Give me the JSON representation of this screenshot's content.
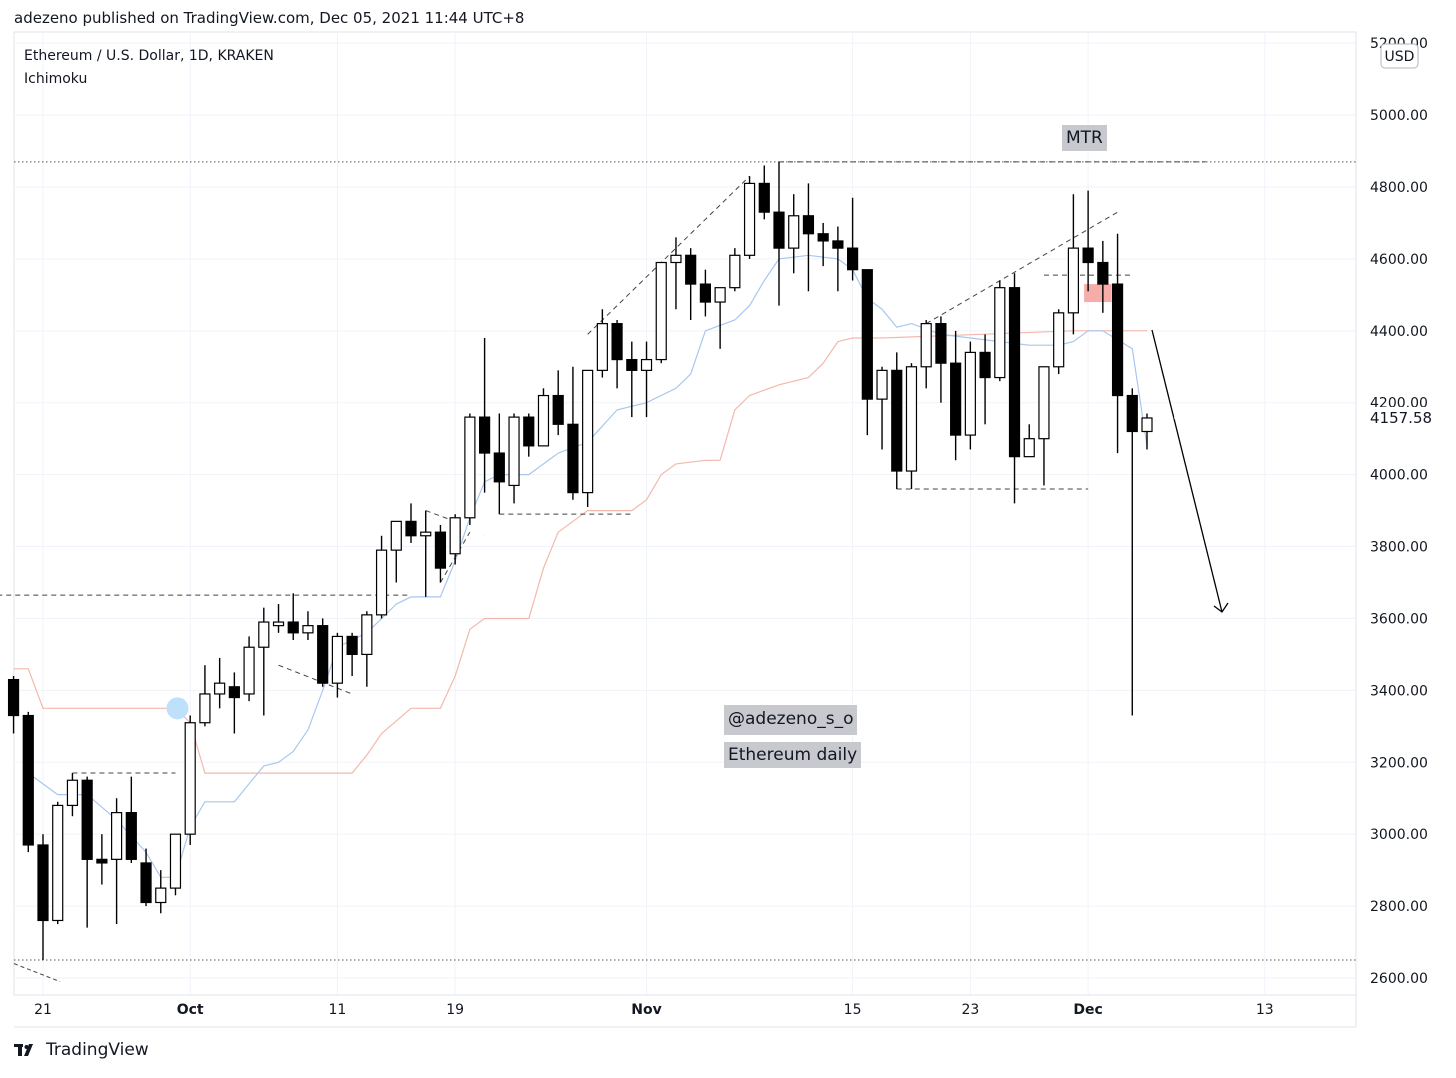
{
  "header": {
    "publish_line": "adezeno published on TradingView.com, Dec 05, 2021 11:44 UTC+8"
  },
  "legend": {
    "symbol": "Ethereum / U.S. Dollar, 1D, KRAKEN",
    "indicator": "Ichimoku"
  },
  "annotations": {
    "mtr_label": "MTR",
    "author_tag": "@adezeno_s_o",
    "caption": "Ethereum daily"
  },
  "footer": {
    "brand": "TradingView"
  },
  "colors": {
    "bull_body": "#ffffff",
    "bear_body": "#000000",
    "wick": "#000000",
    "grid": "#f0f3fa",
    "tenkan": "#aac6ee",
    "kijun": "#f3b8ad",
    "highlight_fill": "#f5a3a0",
    "circle_marker": "#bfe0fb",
    "annotation_box": "#c7c9cf",
    "last_price_label": "#ffffff"
  },
  "chart_data": {
    "type": "candlestick",
    "currency": "USD",
    "y_ticks": [
      "2600.00",
      "2800.00",
      "3000.00",
      "3200.00",
      "3400.00",
      "3600.00",
      "3800.00",
      "4000.00",
      "4200.00",
      "4400.00",
      "4600.00",
      "4800.00",
      "5000.00",
      "5200.00"
    ],
    "ylim": [
      2570,
      5220
    ],
    "last_price": "4157.58",
    "x_ticks": [
      {
        "label": "21",
        "date": "2021-09-21"
      },
      {
        "label": "Oct",
        "date": "2021-10-01"
      },
      {
        "label": "11",
        "date": "2021-10-11"
      },
      {
        "label": "19",
        "date": "2021-10-19"
      },
      {
        "label": "Nov",
        "date": "2021-11-01"
      },
      {
        "label": "15",
        "date": "2021-11-15"
      },
      {
        "label": "23",
        "date": "2021-11-23"
      },
      {
        "label": "Dec",
        "date": "2021-12-01"
      },
      {
        "label": "13",
        "date": "2021-12-13"
      }
    ],
    "candles": [
      {
        "date": "2021-09-19",
        "o": 3430,
        "h": 3440,
        "l": 3280,
        "c": 3330
      },
      {
        "date": "2021-09-20",
        "o": 3330,
        "h": 3340,
        "l": 2950,
        "c": 2970
      },
      {
        "date": "2021-09-21",
        "o": 2970,
        "h": 3000,
        "l": 2650,
        "c": 2760
      },
      {
        "date": "2021-09-22",
        "o": 2760,
        "h": 3090,
        "l": 2750,
        "c": 3080
      },
      {
        "date": "2021-09-23",
        "o": 3080,
        "h": 3170,
        "l": 3050,
        "c": 3150
      },
      {
        "date": "2021-09-24",
        "o": 3150,
        "h": 3160,
        "l": 2740,
        "c": 2930
      },
      {
        "date": "2021-09-25",
        "o": 2930,
        "h": 3000,
        "l": 2860,
        "c": 2920
      },
      {
        "date": "2021-09-26",
        "o": 2930,
        "h": 3100,
        "l": 2750,
        "c": 3060
      },
      {
        "date": "2021-09-27",
        "o": 3060,
        "h": 3160,
        "l": 2920,
        "c": 2930
      },
      {
        "date": "2021-09-28",
        "o": 2920,
        "h": 2960,
        "l": 2800,
        "c": 2810
      },
      {
        "date": "2021-09-29",
        "o": 2810,
        "h": 2900,
        "l": 2780,
        "c": 2850
      },
      {
        "date": "2021-09-30",
        "o": 2850,
        "h": 3000,
        "l": 2830,
        "c": 3000
      },
      {
        "date": "2021-10-01",
        "o": 3000,
        "h": 3330,
        "l": 2970,
        "c": 3310
      },
      {
        "date": "2021-10-02",
        "o": 3310,
        "h": 3470,
        "l": 3300,
        "c": 3390
      },
      {
        "date": "2021-10-03",
        "o": 3390,
        "h": 3490,
        "l": 3350,
        "c": 3420
      },
      {
        "date": "2021-10-04",
        "o": 3410,
        "h": 3450,
        "l": 3280,
        "c": 3380
      },
      {
        "date": "2021-10-05",
        "o": 3390,
        "h": 3550,
        "l": 3370,
        "c": 3520
      },
      {
        "date": "2021-10-06",
        "o": 3520,
        "h": 3630,
        "l": 3330,
        "c": 3590
      },
      {
        "date": "2021-10-07",
        "o": 3580,
        "h": 3640,
        "l": 3560,
        "c": 3590
      },
      {
        "date": "2021-10-08",
        "o": 3590,
        "h": 3670,
        "l": 3540,
        "c": 3560
      },
      {
        "date": "2021-10-09",
        "o": 3560,
        "h": 3620,
        "l": 3540,
        "c": 3580
      },
      {
        "date": "2021-10-10",
        "o": 3580,
        "h": 3600,
        "l": 3410,
        "c": 3420
      },
      {
        "date": "2021-10-11",
        "o": 3420,
        "h": 3560,
        "l": 3380,
        "c": 3550
      },
      {
        "date": "2021-10-12",
        "o": 3550,
        "h": 3560,
        "l": 3440,
        "c": 3500
      },
      {
        "date": "2021-10-13",
        "o": 3500,
        "h": 3620,
        "l": 3410,
        "c": 3610
      },
      {
        "date": "2021-10-14",
        "o": 3610,
        "h": 3830,
        "l": 3600,
        "c": 3790
      },
      {
        "date": "2021-10-15",
        "o": 3790,
        "h": 3870,
        "l": 3700,
        "c": 3870
      },
      {
        "date": "2021-10-16",
        "o": 3870,
        "h": 3920,
        "l": 3810,
        "c": 3830
      },
      {
        "date": "2021-10-17",
        "o": 3830,
        "h": 3900,
        "l": 3660,
        "c": 3840
      },
      {
        "date": "2021-10-18",
        "o": 3840,
        "h": 3860,
        "l": 3700,
        "c": 3740
      },
      {
        "date": "2021-10-19",
        "o": 3780,
        "h": 3890,
        "l": 3750,
        "c": 3880
      },
      {
        "date": "2021-10-20",
        "o": 3880,
        "h": 4170,
        "l": 3860,
        "c": 4160
      },
      {
        "date": "2021-10-21",
        "o": 4160,
        "h": 4380,
        "l": 3950,
        "c": 4060
      },
      {
        "date": "2021-10-22",
        "o": 4060,
        "h": 4170,
        "l": 3890,
        "c": 3980
      },
      {
        "date": "2021-10-23",
        "o": 3970,
        "h": 4170,
        "l": 3920,
        "c": 4160
      },
      {
        "date": "2021-10-24",
        "o": 4160,
        "h": 4170,
        "l": 4050,
        "c": 4080
      },
      {
        "date": "2021-10-25",
        "o": 4080,
        "h": 4240,
        "l": 4080,
        "c": 4220
      },
      {
        "date": "2021-10-26",
        "o": 4220,
        "h": 4290,
        "l": 4110,
        "c": 4140
      },
      {
        "date": "2021-10-27",
        "o": 4140,
        "h": 4300,
        "l": 3930,
        "c": 3950
      },
      {
        "date": "2021-10-28",
        "o": 3950,
        "h": 4290,
        "l": 3910,
        "c": 4290
      },
      {
        "date": "2021-10-29",
        "o": 4290,
        "h": 4460,
        "l": 4270,
        "c": 4420
      },
      {
        "date": "2021-10-30",
        "o": 4420,
        "h": 4430,
        "l": 4240,
        "c": 4320
      },
      {
        "date": "2021-10-31",
        "o": 4320,
        "h": 4370,
        "l": 4160,
        "c": 4290
      },
      {
        "date": "2021-11-01",
        "o": 4290,
        "h": 4370,
        "l": 4160,
        "c": 4320
      },
      {
        "date": "2021-11-02",
        "o": 4320,
        "h": 4590,
        "l": 4310,
        "c": 4590
      },
      {
        "date": "2021-11-03",
        "o": 4590,
        "h": 4660,
        "l": 4460,
        "c": 4610
      },
      {
        "date": "2021-11-04",
        "o": 4610,
        "h": 4630,
        "l": 4430,
        "c": 4530
      },
      {
        "date": "2021-11-05",
        "o": 4530,
        "h": 4570,
        "l": 4440,
        "c": 4480
      },
      {
        "date": "2021-11-06",
        "o": 4480,
        "h": 4520,
        "l": 4350,
        "c": 4520
      },
      {
        "date": "2021-11-07",
        "o": 4520,
        "h": 4630,
        "l": 4510,
        "c": 4610
      },
      {
        "date": "2021-11-08",
        "o": 4610,
        "h": 4830,
        "l": 4600,
        "c": 4810
      },
      {
        "date": "2021-11-09",
        "o": 4810,
        "h": 4860,
        "l": 4710,
        "c": 4730
      },
      {
        "date": "2021-11-10",
        "o": 4730,
        "h": 4870,
        "l": 4470,
        "c": 4630
      },
      {
        "date": "2021-11-11",
        "o": 4630,
        "h": 4780,
        "l": 4560,
        "c": 4720
      },
      {
        "date": "2021-11-12",
        "o": 4720,
        "h": 4810,
        "l": 4510,
        "c": 4670
      },
      {
        "date": "2021-11-13",
        "o": 4670,
        "h": 4700,
        "l": 4580,
        "c": 4650
      },
      {
        "date": "2021-11-14",
        "o": 4650,
        "h": 4690,
        "l": 4510,
        "c": 4630
      },
      {
        "date": "2021-11-15",
        "o": 4630,
        "h": 4770,
        "l": 4540,
        "c": 4570
      },
      {
        "date": "2021-11-16",
        "o": 4570,
        "h": 4570,
        "l": 4110,
        "c": 4210
      },
      {
        "date": "2021-11-17",
        "o": 4210,
        "h": 4300,
        "l": 4070,
        "c": 4290
      },
      {
        "date": "2021-11-18",
        "o": 4290,
        "h": 4340,
        "l": 3960,
        "c": 4010
      },
      {
        "date": "2021-11-19",
        "o": 4010,
        "h": 4310,
        "l": 3960,
        "c": 4300
      },
      {
        "date": "2021-11-20",
        "o": 4300,
        "h": 4430,
        "l": 4240,
        "c": 4420
      },
      {
        "date": "2021-11-21",
        "o": 4420,
        "h": 4440,
        "l": 4200,
        "c": 4310
      },
      {
        "date": "2021-11-22",
        "o": 4310,
        "h": 4400,
        "l": 4040,
        "c": 4110
      },
      {
        "date": "2021-11-23",
        "o": 4110,
        "h": 4370,
        "l": 4070,
        "c": 4340
      },
      {
        "date": "2021-11-24",
        "o": 4340,
        "h": 4390,
        "l": 4140,
        "c": 4270
      },
      {
        "date": "2021-11-25",
        "o": 4270,
        "h": 4540,
        "l": 4260,
        "c": 4520
      },
      {
        "date": "2021-11-26",
        "o": 4520,
        "h": 4560,
        "l": 3920,
        "c": 4050
      },
      {
        "date": "2021-11-27",
        "o": 4050,
        "h": 4140,
        "l": 4050,
        "c": 4100
      },
      {
        "date": "2021-11-28",
        "o": 4100,
        "h": 4300,
        "l": 3970,
        "c": 4300
      },
      {
        "date": "2021-11-29",
        "o": 4300,
        "h": 4460,
        "l": 4280,
        "c": 4450
      },
      {
        "date": "2021-11-30",
        "o": 4450,
        "h": 4780,
        "l": 4390,
        "c": 4630
      },
      {
        "date": "2021-12-01",
        "o": 4630,
        "h": 4790,
        "l": 4510,
        "c": 4590
      },
      {
        "date": "2021-12-02",
        "o": 4590,
        "h": 4650,
        "l": 4450,
        "c": 4530
      },
      {
        "date": "2021-12-03",
        "o": 4530,
        "h": 4670,
        "l": 4060,
        "c": 4220
      },
      {
        "date": "2021-12-04",
        "o": 4220,
        "h": 4240,
        "l": 3330,
        "c": 4120
      },
      {
        "date": "2021-12-05",
        "o": 4120,
        "h": 4170,
        "l": 4070,
        "c": 4157.58
      }
    ],
    "tenkan": [
      {
        "date": "2021-09-20",
        "v": 3170
      },
      {
        "date": "2021-09-22",
        "v": 3110
      },
      {
        "date": "2021-09-24",
        "v": 3110
      },
      {
        "date": "2021-09-26",
        "v": 3040
      },
      {
        "date": "2021-09-28",
        "v": 2950
      },
      {
        "date": "2021-09-29",
        "v": 2880
      },
      {
        "date": "2021-09-30",
        "v": 2880
      },
      {
        "date": "2021-10-01",
        "v": 3020
      },
      {
        "date": "2021-10-02",
        "v": 3090
      },
      {
        "date": "2021-10-04",
        "v": 3090
      },
      {
        "date": "2021-10-05",
        "v": 3140
      },
      {
        "date": "2021-10-06",
        "v": 3190
      },
      {
        "date": "2021-10-07",
        "v": 3200
      },
      {
        "date": "2021-10-08",
        "v": 3230
      },
      {
        "date": "2021-10-09",
        "v": 3290
      },
      {
        "date": "2021-10-10",
        "v": 3400
      },
      {
        "date": "2021-10-11",
        "v": 3520
      },
      {
        "date": "2021-10-13",
        "v": 3560
      },
      {
        "date": "2021-10-14",
        "v": 3600
      },
      {
        "date": "2021-10-15",
        "v": 3640
      },
      {
        "date": "2021-10-16",
        "v": 3660
      },
      {
        "date": "2021-10-18",
        "v": 3660
      },
      {
        "date": "2021-10-19",
        "v": 3760
      },
      {
        "date": "2021-10-20",
        "v": 3880
      },
      {
        "date": "2021-10-21",
        "v": 3980
      },
      {
        "date": "2021-10-22",
        "v": 4000
      },
      {
        "date": "2021-10-24",
        "v": 4000
      },
      {
        "date": "2021-10-26",
        "v": 4060
      },
      {
        "date": "2021-10-28",
        "v": 4090
      },
      {
        "date": "2021-10-30",
        "v": 4180
      },
      {
        "date": "2021-11-01",
        "v": 4200
      },
      {
        "date": "2021-11-03",
        "v": 4240
      },
      {
        "date": "2021-11-04",
        "v": 4280
      },
      {
        "date": "2021-11-05",
        "v": 4400
      },
      {
        "date": "2021-11-07",
        "v": 4430
      },
      {
        "date": "2021-11-08",
        "v": 4470
      },
      {
        "date": "2021-11-09",
        "v": 4540
      },
      {
        "date": "2021-11-10",
        "v": 4600
      },
      {
        "date": "2021-11-12",
        "v": 4610
      },
      {
        "date": "2021-11-14",
        "v": 4600
      },
      {
        "date": "2021-11-15",
        "v": 4570
      },
      {
        "date": "2021-11-16",
        "v": 4490
      },
      {
        "date": "2021-11-17",
        "v": 4460
      },
      {
        "date": "2021-11-18",
        "v": 4410
      },
      {
        "date": "2021-11-19",
        "v": 4420
      },
      {
        "date": "2021-11-21",
        "v": 4390
      },
      {
        "date": "2021-11-23",
        "v": 4380
      },
      {
        "date": "2021-11-25",
        "v": 4370
      },
      {
        "date": "2021-11-27",
        "v": 4360
      },
      {
        "date": "2021-11-29",
        "v": 4360
      },
      {
        "date": "2021-11-30",
        "v": 4370
      },
      {
        "date": "2021-12-01",
        "v": 4400
      },
      {
        "date": "2021-12-02",
        "v": 4400
      },
      {
        "date": "2021-12-04",
        "v": 4350
      },
      {
        "date": "2021-12-05",
        "v": 4080
      }
    ],
    "kijun": [
      {
        "date": "2021-09-19",
        "v": 3460
      },
      {
        "date": "2021-09-20",
        "v": 3460
      },
      {
        "date": "2021-09-21",
        "v": 3350
      },
      {
        "date": "2021-09-30",
        "v": 3350
      },
      {
        "date": "2021-10-01",
        "v": 3310
      },
      {
        "date": "2021-10-02",
        "v": 3170
      },
      {
        "date": "2021-10-12",
        "v": 3170
      },
      {
        "date": "2021-10-13",
        "v": 3220
      },
      {
        "date": "2021-10-14",
        "v": 3280
      },
      {
        "date": "2021-10-16",
        "v": 3350
      },
      {
        "date": "2021-10-18",
        "v": 3350
      },
      {
        "date": "2021-10-19",
        "v": 3440
      },
      {
        "date": "2021-10-20",
        "v": 3570
      },
      {
        "date": "2021-10-21",
        "v": 3600
      },
      {
        "date": "2021-10-24",
        "v": 3600
      },
      {
        "date": "2021-10-25",
        "v": 3740
      },
      {
        "date": "2021-10-26",
        "v": 3840
      },
      {
        "date": "2021-10-28",
        "v": 3900
      },
      {
        "date": "2021-10-31",
        "v": 3900
      },
      {
        "date": "2021-11-01",
        "v": 3930
      },
      {
        "date": "2021-11-02",
        "v": 4000
      },
      {
        "date": "2021-11-03",
        "v": 4030
      },
      {
        "date": "2021-11-05",
        "v": 4040
      },
      {
        "date": "2021-11-06",
        "v": 4040
      },
      {
        "date": "2021-11-07",
        "v": 4180
      },
      {
        "date": "2021-11-08",
        "v": 4220
      },
      {
        "date": "2021-11-10",
        "v": 4250
      },
      {
        "date": "2021-11-12",
        "v": 4270
      },
      {
        "date": "2021-11-13",
        "v": 4310
      },
      {
        "date": "2021-11-14",
        "v": 4370
      },
      {
        "date": "2021-11-15",
        "v": 4380
      },
      {
        "date": "2021-11-17",
        "v": 4380
      },
      {
        "date": "2021-11-30",
        "v": 4400
      },
      {
        "date": "2021-12-05",
        "v": 4400
      }
    ],
    "zones": [
      {
        "start": "2021-12-01",
        "end": "2021-12-03",
        "low": 4480,
        "high": 4530
      }
    ],
    "level_lines": [
      {
        "date_start": "2021-09-13",
        "date_end": "2021-12-19",
        "value": 4870
      },
      {
        "date_start": "2021-09-13",
        "date_end": "2021-12-19",
        "value": 2650
      }
    ]
  }
}
